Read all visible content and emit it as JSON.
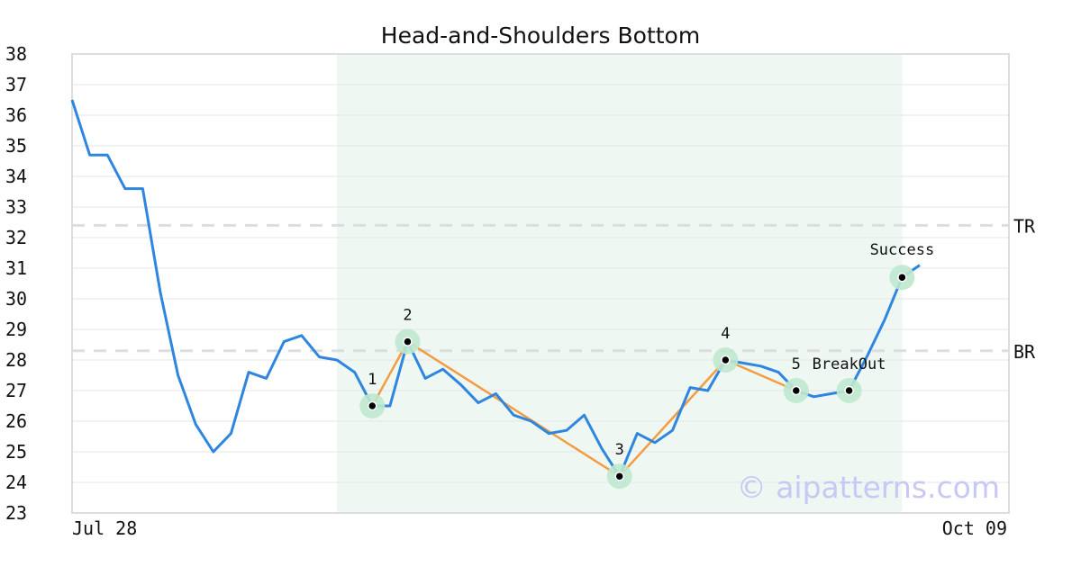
{
  "chart_data": {
    "type": "line",
    "title": "Head-and-Shoulders Bottom",
    "ylim": [
      23,
      38
    ],
    "y_ticks": [
      "23",
      "24",
      "25",
      "26",
      "27",
      "28",
      "29",
      "30",
      "31",
      "32",
      "33",
      "34",
      "35",
      "36",
      "37",
      "38"
    ],
    "x_tick_labels": [
      "Jul 28",
      "Oct 09"
    ],
    "grid": "horizontal",
    "colors": {
      "price": "#2e86de",
      "pattern": "#f39c42",
      "marker_halo": "#bfe8cf",
      "pattern_region": "#eef7f2",
      "level_line": "#dddddd",
      "watermark": "#c8c8f4"
    },
    "series": [
      {
        "values": [
          36.5,
          34.7,
          34.7,
          33.6,
          33.6,
          30.2,
          27.5,
          25.9,
          25.0,
          25.6,
          27.6,
          27.4,
          28.6,
          28.8,
          28.1,
          28.0,
          27.6,
          26.5,
          26.5,
          28.6,
          27.4,
          27.7,
          27.2,
          26.6,
          26.9,
          26.2,
          26.0,
          25.6,
          25.7,
          26.2,
          25.1,
          24.2,
          25.6,
          25.3,
          25.7,
          27.1,
          27.0,
          28.0,
          27.9,
          27.8,
          27.6,
          27.0,
          26.8,
          26.9,
          27.0,
          28.1,
          29.3,
          30.7,
          31.1
        ]
      }
    ],
    "pattern_region": {
      "start_index": 15,
      "end_index": 47
    },
    "pattern_points": [
      {
        "label": "1",
        "index": 17,
        "value": 26.5
      },
      {
        "label": "2",
        "index": 19,
        "value": 28.6
      },
      {
        "label": "3",
        "index": 31,
        "value": 24.2
      },
      {
        "label": "4",
        "index": 37,
        "value": 28.0
      },
      {
        "label": "5",
        "index": 41,
        "value": 27.0
      }
    ],
    "breakout": {
      "label": "BreakOut",
      "index": 44,
      "value": 27.0
    },
    "success": {
      "label": "Success",
      "index": 47,
      "value": 30.7
    },
    "levels": [
      {
        "label": "TR",
        "value": 32.4
      },
      {
        "label": "BR",
        "value": 28.3
      }
    ],
    "watermark": "© aipatterns.com"
  }
}
